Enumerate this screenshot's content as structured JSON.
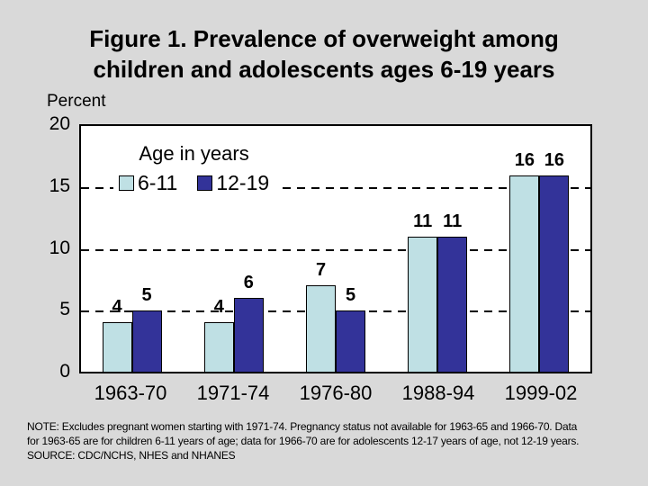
{
  "slide": {
    "background": "#d9d9d9",
    "title_lines": [
      "Figure 1. Prevalence of overweight among",
      "children and adolescents ages 6-19 years"
    ],
    "note_lines": [
      "NOTE:  Excludes pregnant women starting with 1971-74.  Pregnancy status not available for 1963-65 and 1966-70.  Data",
      "for 1963-65 are for children 6-11 years of age; data for 1966-70 are for adolescents 12-17 years of age, not 12-19 years.",
      "SOURCE: CDC/NCHS, NHES and NHANES"
    ]
  },
  "chart_data": {
    "type": "bar",
    "title": "Figure 1. Prevalence of overweight among children and adolescents ages 6-19 years",
    "xlabel": "",
    "ylabel": "Percent",
    "ylim": [
      0,
      20
    ],
    "y_ticks": [
      20,
      15,
      10,
      5,
      0
    ],
    "gridlines": [
      15,
      10,
      5
    ],
    "grid_style": "dashed",
    "grid_on": true,
    "legend_title": "Age in years",
    "legend_position": "top-left-inside",
    "categories": [
      "1963-70",
      "1971-74",
      "1976-80",
      "1988-94",
      "1999-02"
    ],
    "series": [
      {
        "name": "6-11",
        "color": "#bfe0e4",
        "values": [
          4,
          4,
          7,
          11,
          16
        ]
      },
      {
        "name": "12-19",
        "color": "#333399",
        "values": [
          5,
          6,
          5,
          11,
          16
        ]
      }
    ],
    "data_labels_shown": true,
    "colors": {
      "background": "#d9d9d9",
      "plot_background": "#ffffff",
      "axis": "#000000",
      "text": "#000000"
    }
  }
}
